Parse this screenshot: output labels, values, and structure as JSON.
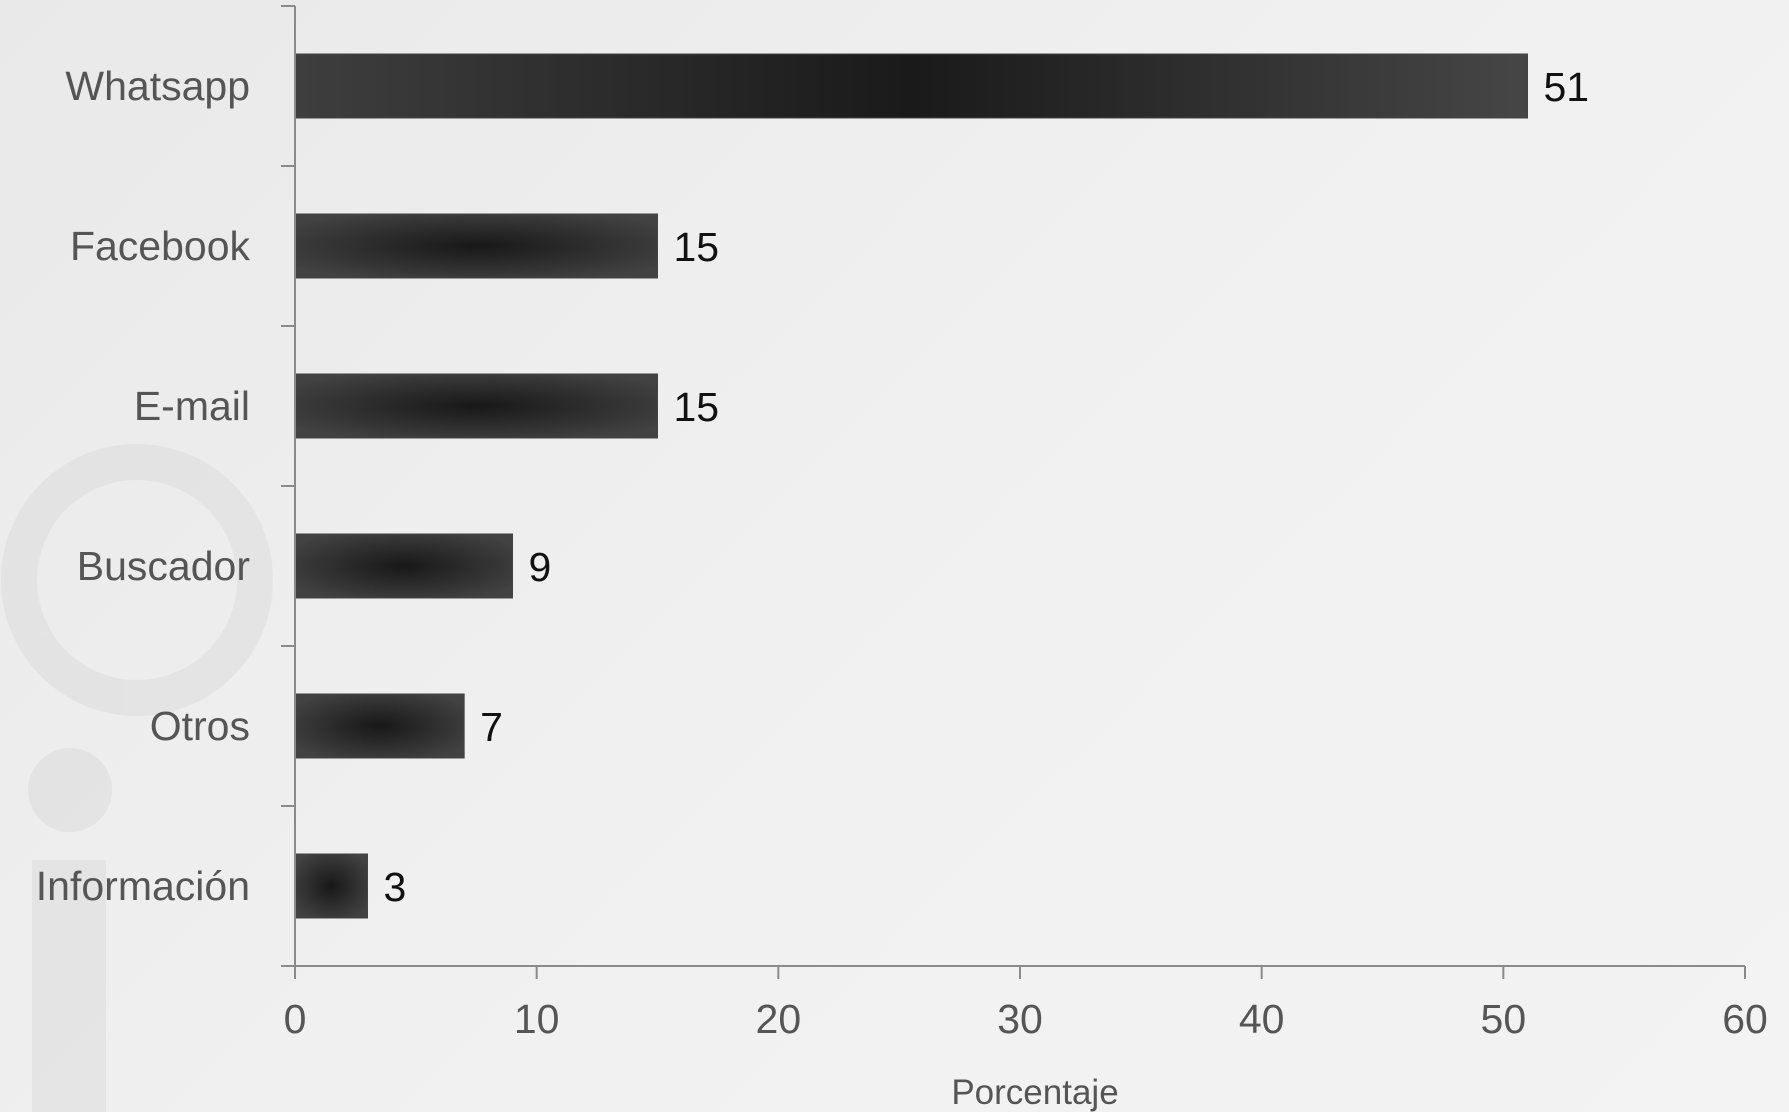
{
  "chart_data": {
    "type": "bar",
    "orientation": "horizontal",
    "categories": [
      "Whatsapp",
      "Facebook",
      "E-mail",
      "Buscador",
      "Otros",
      "Información"
    ],
    "values": [
      51,
      15,
      15,
      9,
      7,
      3
    ],
    "xlabel": "Porcentaje",
    "ylabel": "",
    "xlim": [
      0,
      60
    ],
    "xticks": [
      0,
      10,
      20,
      30,
      40,
      50,
      60
    ],
    "data_labels": true,
    "grid": false,
    "legend": "none",
    "bar_color": "#2a2a2a",
    "bar_edge_color": "#444444"
  }
}
